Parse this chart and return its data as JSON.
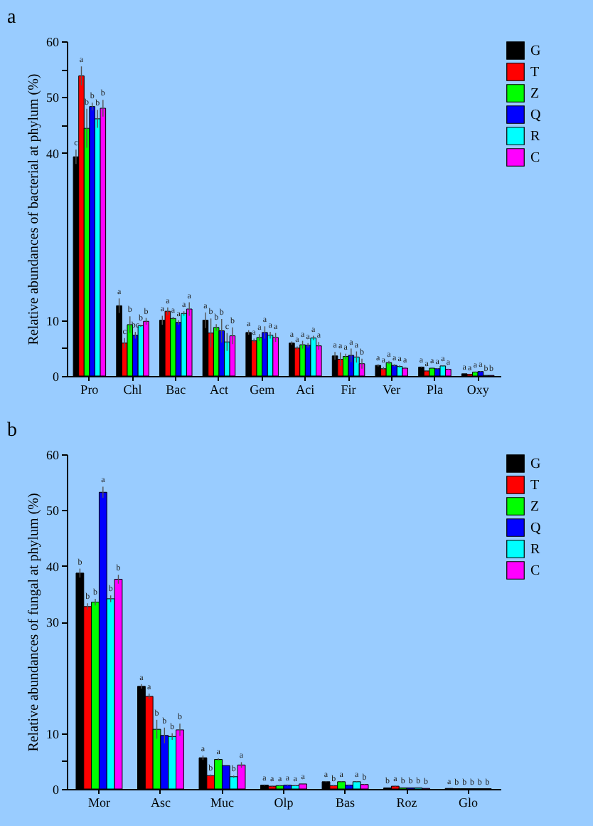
{
  "chart_data": [
    {
      "type": "bar",
      "title": "a",
      "ylabel": "Relative abundances of bacterial at phylum (%)",
      "categories": [
        "Pro",
        "Chl",
        "Bac",
        "Act",
        "Gem",
        "Aci",
        "Fir",
        "Ver",
        "Pla",
        "Oxy"
      ],
      "ylim": [
        0,
        60
      ],
      "yticks": [
        0,
        {
          "value": 5,
          "label": null
        },
        10,
        40,
        {
          "value": 45,
          "label": null
        },
        50,
        {
          "value": 55,
          "label": null
        },
        60
      ],
      "legend": "top right",
      "series": [
        {
          "name": "G",
          "color": "#000000",
          "values": [
            39.3,
            12.6,
            10.0,
            10.0,
            7.8,
            5.9,
            3.6,
            1.9,
            1.6,
            0.4
          ],
          "errors": [
            1.3,
            1.3,
            0.8,
            1.4,
            0.4,
            0.3,
            0.7,
            0.2,
            0.1,
            null
          ],
          "value_labels": [
            "c",
            "a",
            "a",
            "a",
            "a",
            "a",
            "a",
            "a",
            "a",
            "a"
          ]
        },
        {
          "name": "T",
          "color": "#ff0000",
          "values": [
            53.8,
            5.9,
            11.6,
            7.7,
            6.3,
            5.0,
            3.0,
            1.3,
            0.9,
            0.3
          ],
          "errors": [
            1.7,
            0.9,
            0.7,
            2.6,
            0.4,
            0.3,
            1.2,
            0.3,
            0.1,
            null
          ],
          "value_labels": [
            "a",
            "c",
            "a",
            "b",
            "a",
            "a",
            "a",
            "a",
            "a",
            "a"
          ]
        },
        {
          "name": "Z",
          "color": "#00ff00",
          "values": [
            44.4,
            9.2,
            10.3,
            8.7,
            6.9,
            5.6,
            3.5,
            2.4,
            1.4,
            0.7
          ],
          "errors": [
            3.5,
            1.5,
            0.3,
            0.6,
            0.6,
            0.7,
            0.5,
            0.3,
            0.1,
            0.1
          ],
          "value_labels": [
            "b",
            "b",
            "a",
            "b",
            "a",
            "a",
            "a",
            "a",
            "a",
            "a"
          ]
        },
        {
          "name": "Q",
          "color": "#0000ff",
          "values": [
            48.3,
            7.3,
            9.6,
            8.1,
            7.8,
            5.5,
            3.7,
            1.9,
            1.3,
            0.8
          ],
          "errors": [
            0.7,
            0.6,
            0.4,
            2.1,
            1.1,
            0.4,
            1.2,
            0.2,
            0.1,
            0.1
          ],
          "value_labels": [
            "b",
            "bc",
            "a",
            "b",
            "a",
            "a",
            "a",
            "a",
            "a",
            "a"
          ]
        },
        {
          "name": "R",
          "color": "#00ffff",
          "values": [
            46.1,
            9.0,
            11.2,
            6.1,
            7.3,
            6.8,
            3.4,
            1.7,
            1.8,
            0.1
          ],
          "errors": [
            1.6,
            0.2,
            0.4,
            1.6,
            0.6,
            0.4,
            1.0,
            0.2,
            0.1,
            null
          ],
          "value_labels": [
            "b",
            "b",
            "a",
            "c",
            "a",
            "a",
            "a",
            "a",
            "a",
            "b"
          ]
        },
        {
          "name": "C",
          "color": "#ff00ff",
          "values": [
            48.0,
            9.8,
            12.0,
            7.2,
            6.9,
            5.4,
            2.2,
            1.4,
            1.2,
            0.1
          ],
          "errors": [
            1.5,
            0.6,
            1.2,
            1.5,
            0.8,
            0.7,
            0.9,
            0.2,
            0.1,
            null
          ],
          "value_labels": [
            "b",
            "b",
            "a",
            "b",
            "a",
            "a",
            "b",
            "a",
            "a",
            "b"
          ]
        }
      ]
    },
    {
      "type": "bar",
      "title": "b",
      "ylabel": "Relative abundances of fungal at phylum (%)",
      "categories": [
        "Mor",
        "Asc",
        "Muc",
        "Olp",
        "Bas",
        "Roz",
        "Glo"
      ],
      "ylim": [
        0,
        60
      ],
      "yticks": [
        0,
        {
          "value": 5,
          "label": null
        },
        10,
        30,
        40,
        50,
        60
      ],
      "legend": "top right",
      "series": [
        {
          "name": "G",
          "color": "#000000",
          "values": [
            38.7,
            18.4,
            5.6,
            0.7,
            1.3,
            0.2,
            0.1
          ],
          "errors": [
            0.8,
            0.4,
            0.4,
            0.1,
            0.1,
            null,
            null
          ],
          "value_labels": [
            "b",
            "a",
            "a",
            "a",
            "a",
            "b",
            "a"
          ]
        },
        {
          "name": "T",
          "color": "#ff0000",
          "values": [
            32.7,
            16.6,
            2.4,
            0.5,
            0.6,
            0.5,
            0.05
          ],
          "errors": [
            0.6,
            0.5,
            0.2,
            0.1,
            0.1,
            0.1,
            null
          ],
          "value_labels": [
            "b",
            "a",
            "b",
            "a",
            "b",
            "a",
            "b"
          ]
        },
        {
          "name": "Z",
          "color": "#00ff00",
          "values": [
            33.5,
            10.7,
            5.3,
            0.6,
            1.3,
            0.2,
            0.05
          ],
          "errors": [
            0.6,
            1.7,
            0.2,
            0.1,
            0.1,
            null,
            null
          ],
          "value_labels": [
            "b",
            "b",
            "a",
            "a",
            "a",
            "b",
            "b"
          ]
        },
        {
          "name": "Q",
          "color": "#0000ff",
          "values": [
            53.2,
            9.6,
            4.2,
            0.7,
            0.7,
            0.2,
            0.05
          ],
          "errors": [
            1.0,
            1.4,
            null,
            0.1,
            0.1,
            null,
            null
          ],
          "value_labels": [
            "a",
            "b",
            null,
            "a",
            null,
            "b",
            "b"
          ]
        },
        {
          "name": "R",
          "color": "#00ffff",
          "values": [
            34.1,
            9.4,
            2.2,
            0.6,
            1.3,
            0.2,
            0.05
          ],
          "errors": [
            0.6,
            0.6,
            0.2,
            0.1,
            0.1,
            null,
            null
          ],
          "value_labels": [
            "b",
            "b",
            "b",
            "a",
            "a",
            "b",
            "b"
          ]
        },
        {
          "name": "C",
          "color": "#ff00ff",
          "values": [
            37.6,
            10.6,
            4.3,
            0.9,
            0.8,
            0.1,
            0.05
          ],
          "errors": [
            0.8,
            1.1,
            0.5,
            0.1,
            0.1,
            null,
            null
          ],
          "value_labels": [
            "b",
            "b",
            "a",
            "a",
            "b",
            "b",
            "b"
          ]
        }
      ]
    }
  ]
}
